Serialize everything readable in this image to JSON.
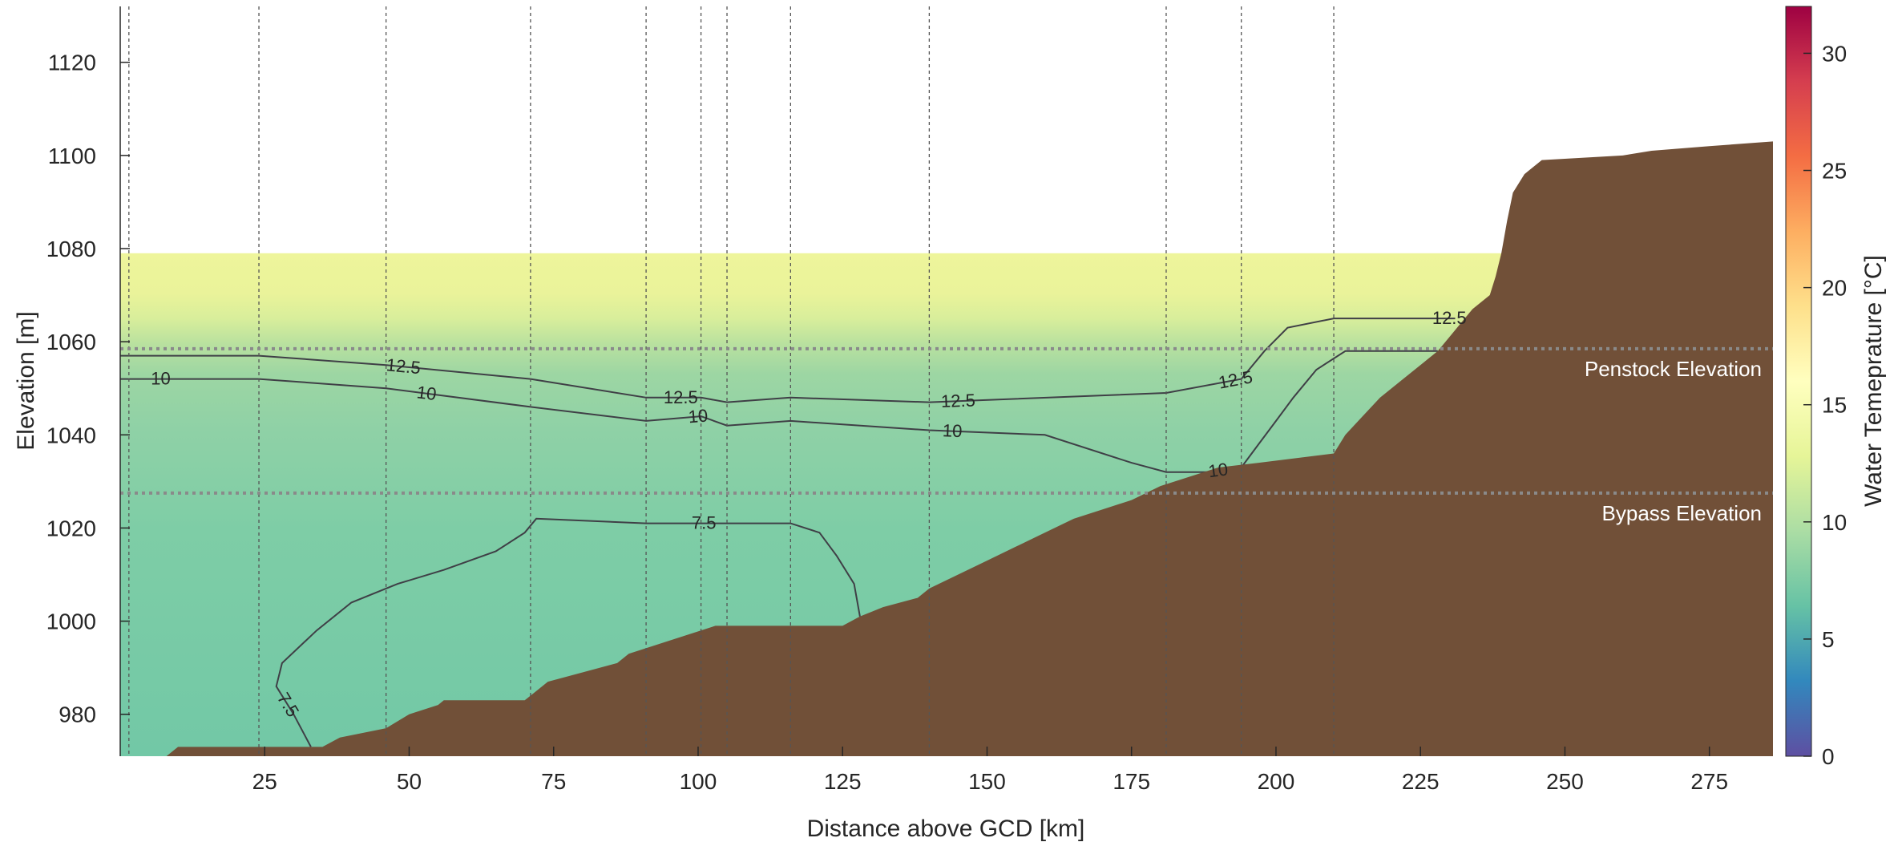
{
  "chart_data": {
    "type": "heatmap",
    "title": "",
    "xlabel": "Distance above GCD [km]",
    "ylabel": "Elevation [m]",
    "colorbar_label": "Water Temeprature [°C]",
    "xlim": [
      0,
      286
    ],
    "ylim": [
      971,
      1132
    ],
    "x_ticks": [
      25,
      50,
      75,
      100,
      125,
      150,
      175,
      200,
      225,
      250,
      275
    ],
    "y_ticks": [
      980,
      1000,
      1020,
      1040,
      1060,
      1080,
      1100,
      1120
    ],
    "colorbar_range": [
      0,
      32
    ],
    "colorbar_ticks": [
      0,
      5,
      10,
      15,
      20,
      25,
      30
    ],
    "water_surface_elevation": 1079,
    "profile_station_km": [
      1.5,
      24,
      46,
      71,
      91,
      100.5,
      105,
      116,
      140,
      181,
      194,
      210
    ],
    "reference_lines": [
      {
        "label": "Penstock Elevation",
        "elevation": 1058.5
      },
      {
        "label": "Bypass Elevation",
        "elevation": 1027.5
      }
    ],
    "bathymetry": [
      [
        0,
        971
      ],
      [
        8,
        971
      ],
      [
        10,
        973
      ],
      [
        35,
        973
      ],
      [
        38,
        975
      ],
      [
        46,
        977
      ],
      [
        50,
        980
      ],
      [
        55,
        982
      ],
      [
        56,
        983
      ],
      [
        70,
        983
      ],
      [
        72,
        985
      ],
      [
        74,
        987
      ],
      [
        80,
        989
      ],
      [
        86,
        991
      ],
      [
        88,
        993
      ],
      [
        93,
        995
      ],
      [
        98,
        997
      ],
      [
        103,
        999
      ],
      [
        125,
        999
      ],
      [
        128,
        1001
      ],
      [
        132,
        1003
      ],
      [
        138,
        1005
      ],
      [
        140,
        1007
      ],
      [
        145,
        1010
      ],
      [
        150,
        1013
      ],
      [
        155,
        1016
      ],
      [
        160,
        1019
      ],
      [
        165,
        1022
      ],
      [
        170,
        1024
      ],
      [
        175,
        1026
      ],
      [
        180,
        1029
      ],
      [
        190,
        1033
      ],
      [
        197,
        1034
      ],
      [
        210,
        1036
      ],
      [
        212,
        1040
      ],
      [
        215,
        1044
      ],
      [
        218,
        1048
      ],
      [
        222,
        1052
      ],
      [
        226,
        1056
      ],
      [
        228,
        1058
      ],
      [
        230,
        1061
      ],
      [
        232,
        1064
      ],
      [
        234,
        1067
      ],
      [
        237,
        1070
      ],
      [
        238,
        1074
      ],
      [
        239,
        1079
      ],
      [
        240,
        1086
      ],
      [
        241,
        1092
      ],
      [
        243,
        1096
      ],
      [
        246,
        1099
      ],
      [
        260,
        1100
      ],
      [
        265,
        1101
      ],
      [
        275,
        1102
      ],
      [
        286,
        1103
      ]
    ],
    "series": [
      {
        "name": "12.5",
        "label_at_x": [
          49,
          97,
          145,
          193,
          230
        ],
        "x": [
          0,
          24,
          46,
          71,
          91,
          100.5,
          105,
          116,
          140,
          181,
          194,
          198,
          202,
          210,
          225,
          231
        ],
        "y": [
          1057,
          1057,
          1055,
          1052,
          1048,
          1048,
          1047,
          1048,
          1047,
          1049,
          1052,
          1058,
          1063,
          1065,
          1065,
          1065
        ]
      },
      {
        "name": "10",
        "label_at_x": [
          7,
          53,
          100,
          144,
          190
        ],
        "x": [
          0,
          24,
          46,
          71,
          91,
          100.5,
          105,
          116,
          140,
          160,
          175,
          181,
          188,
          194,
          197,
          200,
          203,
          207,
          212,
          228
        ],
        "y": [
          1052,
          1052,
          1050,
          1046,
          1043,
          1044,
          1042,
          1043,
          1041,
          1040,
          1034,
          1032,
          1032,
          1033,
          1038,
          1043,
          1048,
          1054,
          1058,
          1058
        ]
      },
      {
        "name": "7.5",
        "label_at_x": [
          29,
          101
        ],
        "x": [
          33,
          30,
          27,
          28,
          34,
          40,
          48,
          56,
          65,
          70,
          72,
          91,
          100,
          105,
          116,
          121,
          124,
          127,
          128
        ],
        "y": [
          973,
          980,
          986,
          991,
          998,
          1004,
          1008,
          1011,
          1015,
          1019,
          1022,
          1021,
          1021,
          1021,
          1021,
          1019,
          1014,
          1008,
          1001
        ]
      }
    ]
  }
}
